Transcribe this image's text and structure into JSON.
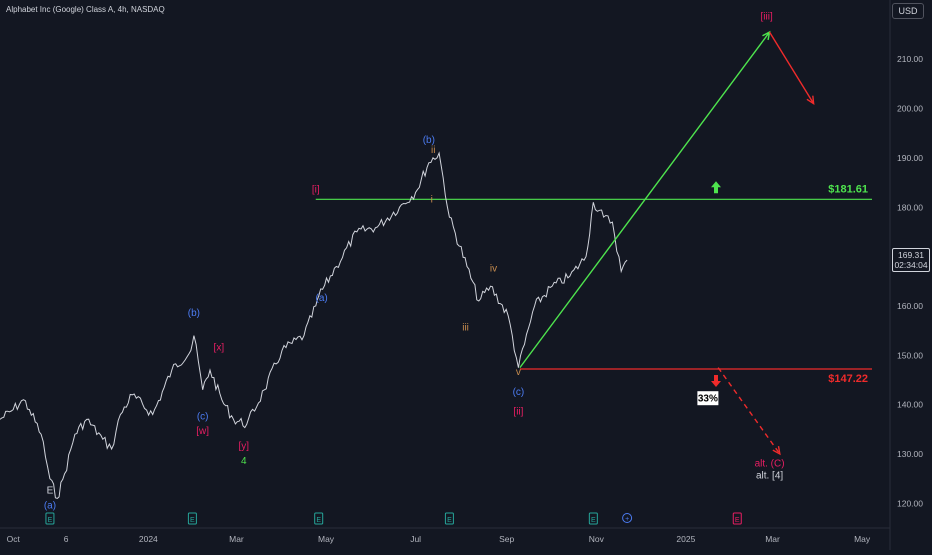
{
  "header": {
    "title": "Alphabet Inc (Google) Class A, 4h, NASDAQ",
    "currency": "USD"
  },
  "last_price": {
    "price": "169.31",
    "countdown": "02:34:04",
    "value": 169.31
  },
  "colors": {
    "background": "#131722",
    "green": "#4ee44e",
    "red": "#ef2b2b",
    "crimson": "#e91e63",
    "blue": "#4c7cf3",
    "orange": "#c78c4e",
    "white": "#d1d4dc"
  },
  "chart_data": {
    "type": "line",
    "title": "Alphabet Inc (Google) Class A, 4h, NASDAQ",
    "xlabel": "",
    "ylabel": "",
    "ylim": [
      115,
      222
    ],
    "xlim": [
      "2023-09-22",
      "2025-05-20"
    ],
    "grid": false,
    "x_tick_labels": [
      {
        "label": "Oct",
        "x": "2023-10-01"
      },
      {
        "label": "6",
        "x": "2023-11-06"
      },
      {
        "label": "2024",
        "x": "2024-01-01"
      },
      {
        "label": "Mar",
        "x": "2024-03-01"
      },
      {
        "label": "May",
        "x": "2024-05-01"
      },
      {
        "label": "Jul",
        "x": "2024-07-01"
      },
      {
        "label": "Sep",
        "x": "2024-09-01"
      },
      {
        "label": "Nov",
        "x": "2024-11-01"
      },
      {
        "label": "2025",
        "x": "2025-01-01"
      },
      {
        "label": "Mar",
        "x": "2025-03-01"
      },
      {
        "label": "May",
        "x": "2025-05-01"
      }
    ],
    "y_ticks": [
      120,
      130,
      140,
      150,
      160,
      170,
      180,
      190,
      200,
      210
    ],
    "y_tick_labels": [
      "120.00",
      "130.00",
      "140.00",
      "150.00",
      "160.00",
      "170.00",
      "180.00",
      "190.00",
      "200.00",
      "210.00"
    ],
    "series": [
      {
        "type": "line",
        "x": [
          "2023-09-22",
          "2023-10-01",
          "2023-10-08",
          "2023-10-12",
          "2023-10-20",
          "2023-10-26",
          "2023-10-31",
          "2023-11-05",
          "2023-11-12",
          "2023-11-20",
          "2023-12-01",
          "2023-12-07",
          "2023-12-13",
          "2023-12-21",
          "2024-01-04",
          "2024-01-17",
          "2024-01-30",
          "2024-02-01",
          "2024-02-07",
          "2024-02-12",
          "2024-02-20",
          "2024-02-28",
          "2024-03-08",
          "2024-03-20",
          "2024-04-01",
          "2024-04-16",
          "2024-04-24",
          "2024-04-26",
          "2024-05-08",
          "2024-05-22",
          "2024-06-05",
          "2024-06-20",
          "2024-07-01",
          "2024-07-10",
          "2024-07-17",
          "2024-07-24",
          "2024-08-05",
          "2024-08-13",
          "2024-08-21",
          "2024-09-02",
          "2024-09-09",
          "2024-09-20",
          "2024-10-02",
          "2024-10-14",
          "2024-10-25",
          "2024-10-30",
          "2024-11-06",
          "2024-11-12",
          "2024-11-18",
          "2024-11-22"
        ],
        "y": [
          137,
          139,
          141,
          139,
          134,
          125,
          121,
          126,
          134,
          137,
          133,
          131,
          138,
          142,
          138,
          147,
          151,
          154,
          143,
          147,
          141,
          137,
          136,
          143,
          151,
          154,
          160,
          162,
          168,
          175,
          176,
          180,
          183,
          189,
          191,
          178,
          168,
          161,
          164,
          158,
          147.5,
          160,
          164,
          166,
          170,
          181,
          178,
          177,
          167,
          169.3
        ]
      }
    ],
    "horizontal_levels": [
      {
        "name": "$181.61",
        "value": 181.61,
        "color": "#4ee44e",
        "direction": "up"
      },
      {
        "name": "$147.22",
        "value": 147.22,
        "color": "#ef2b2b",
        "direction": "down"
      }
    ],
    "projections": [
      {
        "type": "solid",
        "color": "#4ee44e",
        "points": [
          [
            "2024-09-10",
            147.5
          ],
          [
            "2025-02-27",
            215.5
          ]
        ]
      },
      {
        "type": "solid",
        "color": "#ef2b2b",
        "points": [
          [
            "2025-02-27",
            215.5
          ],
          [
            "2025-03-29",
            201
          ]
        ]
      },
      {
        "type": "dashed",
        "color": "#ef2b2b",
        "points": [
          [
            "2025-01-23",
            147.5
          ],
          [
            "2025-03-06",
            130
          ]
        ]
      }
    ],
    "wave_labels": [
      {
        "text": "(a)",
        "x": "2023-10-26",
        "y": 119,
        "color": "#4c7cf3"
      },
      {
        "text": "E",
        "x": "2023-10-26",
        "y": 122,
        "color": "#d1d4dc"
      },
      {
        "text": "(b)",
        "x": "2024-02-01",
        "y": 158,
        "color": "#4c7cf3"
      },
      {
        "text": "(c)",
        "x": "2024-02-07",
        "y": 137,
        "color": "#4c7cf3"
      },
      {
        "text": "[w]",
        "x": "2024-02-07",
        "y": 134,
        "color": "#e91e63"
      },
      {
        "text": "[x]",
        "x": "2024-02-18",
        "y": 151,
        "color": "#e91e63"
      },
      {
        "text": "[y]",
        "x": "2024-03-06",
        "y": 131,
        "color": "#e91e63"
      },
      {
        "text": "4",
        "x": "2024-03-06",
        "y": 128,
        "color": "#4ee44e"
      },
      {
        "text": "[i]",
        "x": "2024-04-24",
        "y": 183,
        "color": "#e91e63"
      },
      {
        "text": "(a)",
        "x": "2024-04-28",
        "y": 161,
        "color": "#4c7cf3"
      },
      {
        "text": "(b)",
        "x": "2024-07-10",
        "y": 193,
        "color": "#4c7cf3"
      },
      {
        "text": "ii",
        "x": "2024-07-13",
        "y": 191,
        "color": "#c78c4e"
      },
      {
        "text": "i",
        "x": "2024-07-12",
        "y": 181,
        "color": "#c78c4e"
      },
      {
        "text": "iii",
        "x": "2024-08-04",
        "y": 155,
        "color": "#c78c4e"
      },
      {
        "text": "iv",
        "x": "2024-08-23",
        "y": 167,
        "color": "#c78c4e"
      },
      {
        "text": "v",
        "x": "2024-09-09",
        "y": 146,
        "color": "#c78c4e"
      },
      {
        "text": "(c)",
        "x": "2024-09-09",
        "y": 142,
        "color": "#4c7cf3"
      },
      {
        "text": "[ii]",
        "x": "2024-09-09",
        "y": 138,
        "color": "#e91e63"
      },
      {
        "text": "[iii]",
        "x": "2025-02-25",
        "y": 218,
        "color": "#e91e63"
      },
      {
        "text": "alt. (C)",
        "x": "2025-02-27",
        "y": 127.5,
        "color": "#e91e63"
      },
      {
        "text": "alt. [4]",
        "x": "2025-02-27",
        "y": 125,
        "color": "#d1d4dc"
      }
    ],
    "annotations": [
      {
        "text": "33%",
        "x": "2025-01-16",
        "y": 141
      }
    ],
    "event_markers": [
      {
        "text": "E",
        "x": "2023-10-26",
        "color": "#26a69a"
      },
      {
        "text": "E",
        "x": "2024-01-31",
        "color": "#26a69a"
      },
      {
        "text": "E",
        "x": "2024-04-26",
        "color": "#26a69a"
      },
      {
        "text": "E",
        "x": "2024-07-24",
        "color": "#26a69a"
      },
      {
        "text": "E",
        "x": "2024-10-30",
        "color": "#26a69a"
      },
      {
        "text": "E",
        "x": "2025-02-05",
        "color": "#e91e63"
      }
    ],
    "legend": "none"
  }
}
